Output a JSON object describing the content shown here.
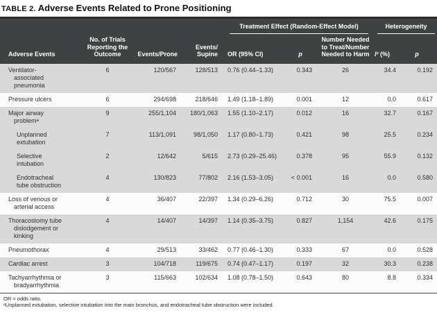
{
  "title": {
    "label": "TABLE 2.",
    "text": "Adverse Events Related to Prone Positioning"
  },
  "colors": {
    "header_bg": "#3f4243",
    "header_text": "#ffffff",
    "row_shade": "#d8d9d8",
    "row_plain": "#fcfcfc",
    "title_rule": "#2b2b2b"
  },
  "table": {
    "group_headers": {
      "treatment_effect": "Treatment Effect (Random-Effect Model)",
      "heterogeneity": "Heterogeneity"
    },
    "headers": {
      "adverse_events": "Adverse Events",
      "trials": "No. of Trials\nReporting the\nOutcome",
      "events_prone": "Events/Prone",
      "events_supine": "Events/\nSupine",
      "or_ci": "OR (95% CI)",
      "p": "p",
      "nnt": "Number Needed\nto Treat/Number\nNeeded to Harm",
      "i2": "I²",
      "i2_unit": " (%)",
      "p2": "p"
    },
    "rows": [
      {
        "name": "Ventilator-\nassociated\npneumonia",
        "trials": "6",
        "prone": "120/567",
        "supine": "128/513",
        "or": "0.76 (0.44–1.33)",
        "p": "0.343",
        "nnt": "26",
        "i2": "34.4",
        "p2": "0.192"
      },
      {
        "name": "Pressure ulcers",
        "trials": "6",
        "prone": "294/698",
        "supine": "218/646",
        "or": "1.49 (1.18–1.89)",
        "p": "0.001",
        "nnt": "12",
        "i2": "0.0",
        "p2": "0.617"
      },
      {
        "name": "Major airway\nproblemᵃ",
        "trials": "9",
        "prone": "255/1,104",
        "supine": "180/1,063",
        "or": "1.55 (1.10–2.17)",
        "p": "0.012",
        "nnt": "16",
        "i2": "32.7",
        "p2": "0.167"
      },
      {
        "name": "Unplanned\nextubation",
        "trials": "7",
        "prone": "113/1,091",
        "supine": "98/1,050",
        "or": "1.17 (0.80–1.73)",
        "p": "0.421",
        "nnt": "98",
        "i2": "25.5",
        "p2": "0.234"
      },
      {
        "name": "Selective\nintubation",
        "trials": "2",
        "prone": "12/642",
        "supine": "5/615",
        "or": "2.73 (0.29–25.46)",
        "p": "0.378",
        "nnt": "95",
        "i2": "55.9",
        "p2": "0.132"
      },
      {
        "name": "Endotracheal\ntube obstruction",
        "trials": "4",
        "prone": "130/823",
        "supine": "77/802",
        "or": "2.16 (1.53–3.05)",
        "p": "< 0.001",
        "nnt": "16",
        "i2": "0.0",
        "p2": "0.580"
      },
      {
        "name": "Loss of venous or\narterial access",
        "trials": "4",
        "prone": "36/407",
        "supine": "22/397",
        "or": "1.34 (0.29–6.26)",
        "p": "0.712",
        "nnt": "30",
        "i2": "75.5",
        "p2": "0.007"
      },
      {
        "name": "Thoracostomy tube\ndislodgement or\nkinking",
        "trials": "4",
        "prone": "14/407",
        "supine": "14/397",
        "or": "1.14 (0.35–3.75)",
        "p": "0.827",
        "nnt": "1,154",
        "i2": "42.6",
        "p2": "0.175"
      },
      {
        "name": "Pneumothorax",
        "trials": "4",
        "prone": "29/513",
        "supine": "33/462",
        "or": "0.77 (0.46–1.30)",
        "p": "0.333",
        "nnt": "67",
        "i2": "0.0",
        "p2": "0.528"
      },
      {
        "name": "Cardiac arrest",
        "trials": "3",
        "prone": "104/718",
        "supine": "119/675",
        "or": "0.74 (0.47–1.17)",
        "p": "0.197",
        "nnt": "32",
        "i2": "30.3",
        "p2": "0.238"
      },
      {
        "name": "Tachyarrhythmia or\nbradyarrhythmia",
        "trials": "3",
        "prone": "115/663",
        "supine": "102/634",
        "or": "1.08 (0.78–1.50)",
        "p": "0.643",
        "nnt": "80",
        "i2": "8.8",
        "p2": "0.334"
      }
    ]
  },
  "footnotes": [
    "OR = odds ratio.",
    "ᵃUnplanned extubation, selective intubation into the main bronchus, and endotracheal tube obstruction were included."
  ]
}
